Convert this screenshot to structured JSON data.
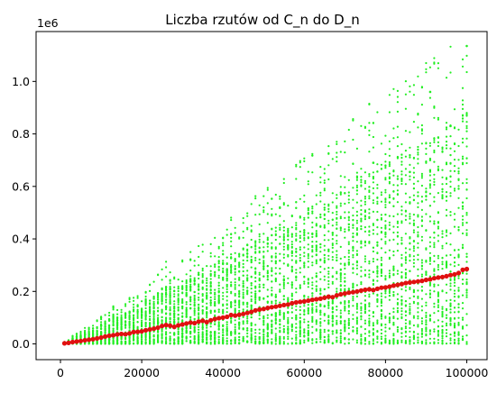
{
  "chart_data": {
    "type": "scatter",
    "title": "Liczba rzutów od C_n do D_n",
    "xlabel": "",
    "ylabel": "",
    "y_multiplier_label": "1e6",
    "xlim": [
      -6000,
      105000
    ],
    "ylim": [
      -0.06,
      1.19
    ],
    "x_ticks": [
      0,
      20000,
      40000,
      60000,
      80000,
      100000
    ],
    "x_tick_labels": [
      "0",
      "20000",
      "40000",
      "60000",
      "80000",
      "100000"
    ],
    "y_ticks": [
      0.0,
      0.2,
      0.4,
      0.6,
      0.8,
      1.0
    ],
    "y_tick_labels": [
      "0.0",
      "0.2",
      "0.4",
      "0.6",
      "0.8",
      "1.0"
    ],
    "grid": false,
    "colors": {
      "samples": "#22ee22",
      "mean": "#e01010"
    },
    "samples_per_n": 50,
    "sample_spread_factor": 3.2,
    "outliers": [
      {
        "x": 91000,
        "y": 0.96
      },
      {
        "x": 96000,
        "y": 0.83
      },
      {
        "x": 100000,
        "y": 1.135
      },
      {
        "x": 77000,
        "y": 0.69
      },
      {
        "x": 86000,
        "y": 0.655
      }
    ],
    "series": [
      {
        "x": [
          1000,
          2000,
          3000,
          4000,
          5000,
          6000,
          7000,
          8000,
          9000,
          10000,
          11000,
          12000,
          13000,
          14000,
          15000,
          16000,
          17000,
          18000,
          19000,
          20000,
          21000,
          22000,
          23000,
          24000,
          25000,
          26000,
          27000,
          28000,
          29000,
          30000,
          31000,
          32000,
          33000,
          34000,
          35000,
          36000,
          37000,
          38000,
          39000,
          40000,
          41000,
          42000,
          43000,
          44000,
          45000,
          46000,
          47000,
          48000,
          49000,
          50000,
          51000,
          52000,
          53000,
          54000,
          55000,
          56000,
          57000,
          58000,
          59000,
          60000,
          61000,
          62000,
          63000,
          64000,
          65000,
          66000,
          67000,
          68000,
          69000,
          70000,
          71000,
          72000,
          73000,
          74000,
          75000,
          76000,
          77000,
          78000,
          79000,
          80000,
          81000,
          82000,
          83000,
          84000,
          85000,
          86000,
          87000,
          88000,
          89000,
          90000,
          91000,
          92000,
          93000,
          94000,
          95000,
          96000,
          97000,
          98000,
          99000,
          100000
        ],
        "y": [
          0.002,
          0.004,
          0.007,
          0.009,
          0.011,
          0.014,
          0.016,
          0.018,
          0.021,
          0.024,
          0.028,
          0.031,
          0.033,
          0.036,
          0.038,
          0.037,
          0.04,
          0.045,
          0.046,
          0.048,
          0.052,
          0.055,
          0.058,
          0.062,
          0.068,
          0.072,
          0.069,
          0.065,
          0.071,
          0.074,
          0.078,
          0.081,
          0.079,
          0.085,
          0.088,
          0.083,
          0.09,
          0.095,
          0.098,
          0.1,
          0.103,
          0.11,
          0.108,
          0.111,
          0.114,
          0.118,
          0.122,
          0.128,
          0.131,
          0.133,
          0.137,
          0.14,
          0.142,
          0.145,
          0.148,
          0.15,
          0.155,
          0.158,
          0.16,
          0.162,
          0.165,
          0.168,
          0.17,
          0.172,
          0.176,
          0.18,
          0.178,
          0.185,
          0.189,
          0.192,
          0.195,
          0.197,
          0.2,
          0.203,
          0.206,
          0.208,
          0.205,
          0.21,
          0.214,
          0.215,
          0.218,
          0.222,
          0.225,
          0.228,
          0.232,
          0.234,
          0.236,
          0.238,
          0.24,
          0.244,
          0.246,
          0.25,
          0.253,
          0.255,
          0.258,
          0.262,
          0.265,
          0.27,
          0.282,
          0.285
        ]
      }
    ]
  }
}
